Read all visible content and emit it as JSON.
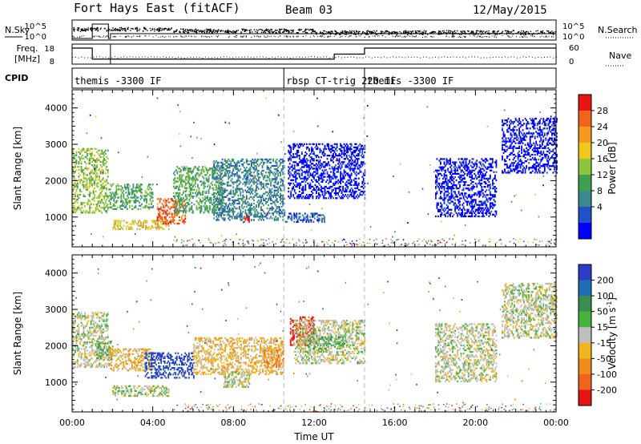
{
  "header": {
    "station": "Fort Hays East (fitACF)",
    "beam": "Beam 03",
    "date": "12/May/2015"
  },
  "top_labels": {
    "nsky": "N.Sky",
    "nsearch": "N.Search",
    "freq": "Freq.",
    "freq_unit": "[MHz]",
    "nave": "Nave",
    "cpid": "CPID",
    "nsky_ticks": [
      "10^5",
      "10^0"
    ],
    "nsearch_ticks": [
      "10^5",
      "10^0"
    ],
    "freq_ticks": [
      "18",
      "8"
    ],
    "nave_ticks": [
      "60",
      "0"
    ]
  },
  "cpid_segments": [
    {
      "label": "themis -3300 IF",
      "start_hour": 0.0
    },
    {
      "label": "rbsp CT-trig 220 IF",
      "start_hour": 10.5
    },
    {
      "label": "themis -3300 IF",
      "start_hour": 14.5
    }
  ],
  "freq_steps": [
    {
      "start_hour": 0.0,
      "end_hour": 1.0,
      "mhz": 16
    },
    {
      "start_hour": 1.0,
      "end_hour": 13.0,
      "mhz": 10.5
    },
    {
      "start_hour": 13.0,
      "end_hour": 14.5,
      "mhz": 13
    },
    {
      "start_hour": 14.5,
      "end_hour": 24.0,
      "mhz": 16
    }
  ],
  "chart_data": [
    {
      "type": "heatmap",
      "quantity": "power",
      "ylabel": "Slant Range [km]",
      "xlabel": "",
      "ylim": [
        180,
        4500
      ],
      "xlim_hours": [
        0,
        24
      ],
      "x_tick_labels": [
        "00:00",
        "04:00",
        "08:00",
        "12:00",
        "16:00",
        "20:00",
        "00:00"
      ],
      "y_tick_values": [
        1000,
        2000,
        3000,
        4000
      ],
      "colorbar": {
        "label": "Power [dB]",
        "ticks": [
          4,
          8,
          12,
          16,
          20,
          24,
          28
        ],
        "colors": [
          "#0000ff",
          "#2250c8",
          "#3a8a90",
          "#3fa04f",
          "#8cc63f",
          "#f0c81e",
          "#f59a1e",
          "#f0641e",
          "#e81414"
        ]
      },
      "echo_regions": [
        {
          "t0": 0.0,
          "t1": 1.8,
          "r0": 1100,
          "r1": 2900,
          "level": 4
        },
        {
          "t0": 1.8,
          "t1": 4.0,
          "r0": 1200,
          "r1": 1900,
          "level": 3
        },
        {
          "t0": 2.0,
          "t1": 4.8,
          "r0": 650,
          "r1": 900,
          "level": 5
        },
        {
          "t0": 4.2,
          "t1": 5.6,
          "r0": 800,
          "r1": 1500,
          "level": 7
        },
        {
          "t0": 5.0,
          "t1": 7.5,
          "r0": 1100,
          "r1": 2400,
          "level": 3
        },
        {
          "t0": 7.0,
          "t1": 10.5,
          "r0": 900,
          "r1": 2600,
          "level": 2
        },
        {
          "t0": 8.5,
          "t1": 8.8,
          "r0": 850,
          "r1": 1050,
          "level": 8
        },
        {
          "t0": 10.5,
          "t1": 12.5,
          "r0": 850,
          "r1": 1100,
          "level": 1
        },
        {
          "t0": 10.7,
          "t1": 14.5,
          "r0": 1500,
          "r1": 3000,
          "level": 0
        },
        {
          "t0": 18.0,
          "t1": 21.0,
          "r0": 1000,
          "r1": 2600,
          "level": 0
        },
        {
          "t0": 21.3,
          "t1": 24.0,
          "r0": 2200,
          "r1": 3700,
          "level": 0
        }
      ]
    },
    {
      "type": "heatmap",
      "quantity": "velocity",
      "ylabel": "Slant Range [km]",
      "xlabel": "Time UT",
      "ylim": [
        180,
        4500
      ],
      "xlim_hours": [
        0,
        24
      ],
      "x_tick_labels": [
        "00:00",
        "04:00",
        "08:00",
        "12:00",
        "16:00",
        "20:00",
        "00:00"
      ],
      "y_tick_values": [
        1000,
        2000,
        3000,
        4000
      ],
      "colorbar": {
        "label": "Velocity [m s",
        "label_sup": "-1",
        "label_end": "]",
        "ticks": [
          "200",
          "100",
          "50",
          "15",
          "-15",
          "-50",
          "-100",
          "-200"
        ],
        "colors": [
          "#2a3cc8",
          "#1e6eb4",
          "#3c8c50",
          "#46b43c",
          "#bebebe",
          "#f0b41e",
          "#f08c1e",
          "#f0641e",
          "#e61414"
        ]
      },
      "echo_regions": [
        {
          "t0": 0.0,
          "t1": 1.8,
          "r0": 1400,
          "r1": 2900,
          "level": 4
        },
        {
          "t0": 1.2,
          "t1": 2.0,
          "r0": 1600,
          "r1": 2100,
          "level": 3
        },
        {
          "t0": 1.8,
          "t1": 4.0,
          "r0": 1300,
          "r1": 1900,
          "level": 5
        },
        {
          "t0": 2.0,
          "t1": 4.8,
          "r0": 600,
          "r1": 900,
          "level": 4
        },
        {
          "t0": 3.6,
          "t1": 6.0,
          "r0": 1100,
          "r1": 1800,
          "level": 0
        },
        {
          "t0": 6.0,
          "t1": 10.5,
          "r0": 1200,
          "r1": 2200,
          "level": 5
        },
        {
          "t0": 7.5,
          "t1": 8.8,
          "r0": 850,
          "r1": 1300,
          "level": 4
        },
        {
          "t0": 9.5,
          "t1": 10.5,
          "r0": 1400,
          "r1": 1900,
          "level": 6
        },
        {
          "t0": 10.8,
          "t1": 12.0,
          "r0": 2000,
          "r1": 2800,
          "level": 8
        },
        {
          "t0": 11.0,
          "t1": 14.5,
          "r0": 1500,
          "r1": 2700,
          "level": 4
        },
        {
          "t0": 11.5,
          "t1": 13.5,
          "r0": 1900,
          "r1": 2300,
          "level": 3
        },
        {
          "t0": 18.0,
          "t1": 21.0,
          "r0": 1000,
          "r1": 2600,
          "level": 4
        },
        {
          "t0": 21.3,
          "t1": 24.0,
          "r0": 2200,
          "r1": 3700,
          "level": 4
        }
      ]
    }
  ]
}
